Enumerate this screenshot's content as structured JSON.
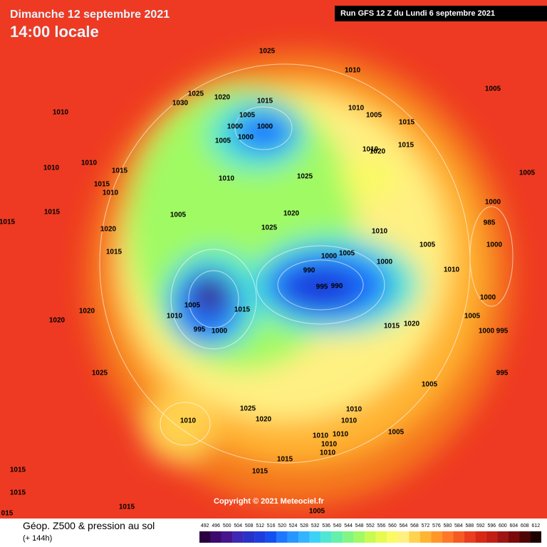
{
  "header": {
    "date": "Dimanche 12 septembre 2021",
    "time": "14:00 locale",
    "run": "Run GFS 12 Z du Lundi 6 septembre 2021"
  },
  "copyright": "Copyright © 2021 Meteociel.fr",
  "footer": {
    "title": "Géop. Z500 & pression au sol",
    "lead": "(+ 144h)"
  },
  "colorbar": {
    "values": [
      492,
      496,
      500,
      504,
      508,
      512,
      516,
      520,
      524,
      528,
      532,
      536,
      540,
      544,
      548,
      552,
      556,
      560,
      564,
      568,
      572,
      576,
      580,
      584,
      588,
      592,
      596,
      600,
      604,
      608,
      612
    ],
    "colors": [
      "#2a0040",
      "#3c0a6e",
      "#46148c",
      "#3c28b4",
      "#2832c8",
      "#1e3cdc",
      "#1450f0",
      "#1e78ff",
      "#2896ff",
      "#32b4ff",
      "#3cd2f5",
      "#50e6d2",
      "#64f0aa",
      "#82f582",
      "#a0fa64",
      "#c8fa50",
      "#e6fa50",
      "#fafa64",
      "#fff082",
      "#ffd250",
      "#ffb432",
      "#ff9628",
      "#ff7828",
      "#f55a23",
      "#eb3c1e",
      "#d72814",
      "#c31e14",
      "#a01414",
      "#7d0a0a",
      "#500505",
      "#1e0000"
    ]
  },
  "pressure_labels": [
    "1025",
    "1010",
    "1005",
    "1025",
    "1020",
    "1030",
    "1015",
    "1010",
    "1010",
    "1005",
    "1000",
    "1015",
    "1005",
    "1000",
    "1000",
    "1005",
    "1015",
    "1010",
    "1020",
    "1010",
    "1010",
    "1015",
    "1005",
    "1010",
    "1025",
    "1015",
    "1010",
    "1000",
    "1015",
    "1005",
    "1020",
    "985",
    "1015",
    "1020",
    "1025",
    "1010",
    "1005",
    "1000",
    "1015",
    "1000",
    "1005",
    "1000",
    "1010",
    "990",
    "995",
    "990",
    "1000",
    "1005",
    "1010",
    "1020",
    "1015",
    "1020",
    "1005",
    "1015",
    "1020",
    "1000",
    "995",
    "995",
    "1000",
    "1025",
    "995",
    "1005",
    "1025",
    "1010",
    "1020",
    "1010",
    "1010",
    "1005",
    "1010",
    "1010",
    "1010",
    "1015",
    "1010",
    "1015",
    "1015",
    "1015",
    "1015",
    "1005",
    "015"
  ]
}
